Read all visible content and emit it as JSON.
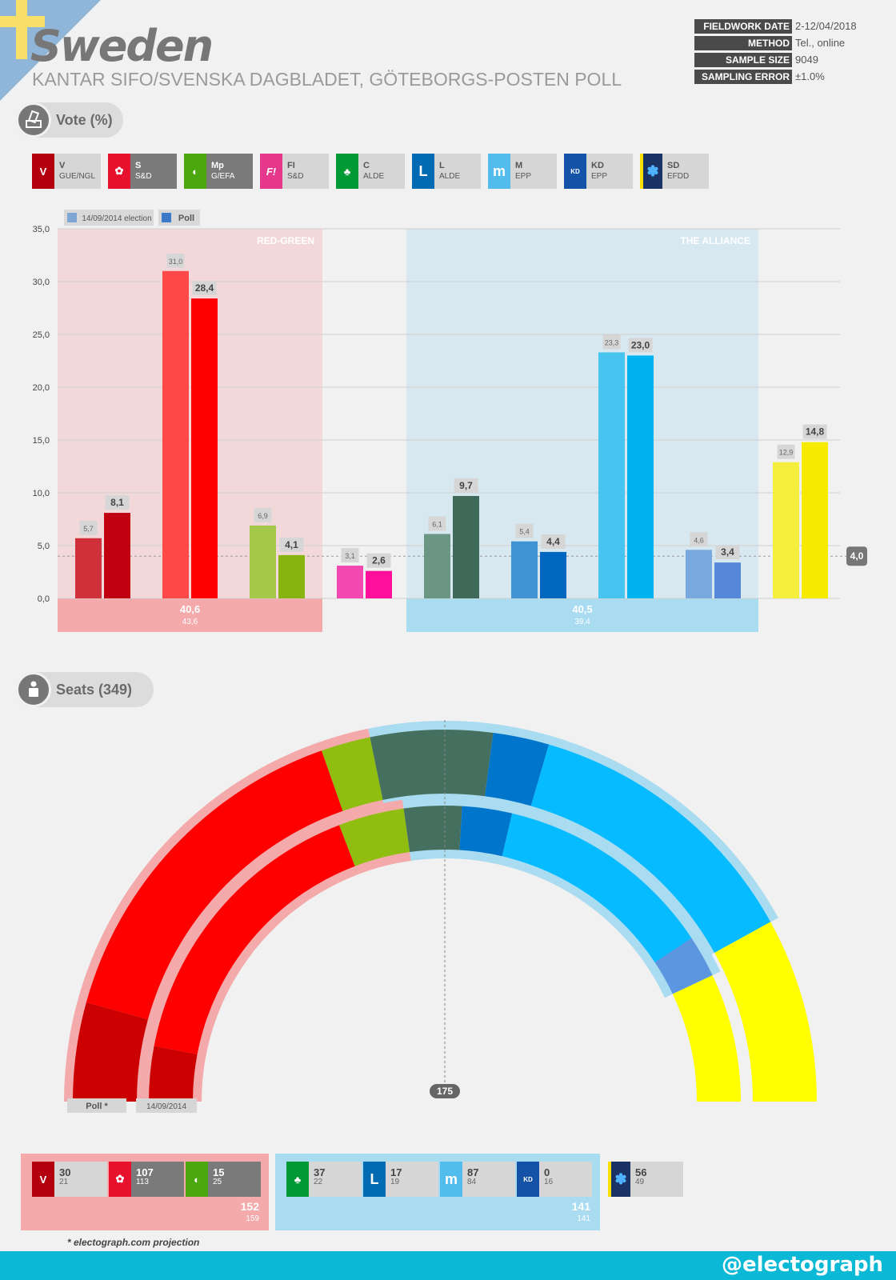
{
  "header": {
    "title": "Sweden",
    "subtitle": "KANTAR SIFO/SVENSKA DAGBLADET, GÖTEBORGS-POSTEN POLL",
    "meta": [
      {
        "key": "FIELDWORK DATE",
        "value": "2-12/04/2018"
      },
      {
        "key": "METHOD",
        "value": "Tel., online"
      },
      {
        "key": "SAMPLE SIZE",
        "value": "9049"
      },
      {
        "key": "SAMPLING ERROR",
        "value": "±1.0%"
      }
    ]
  },
  "sections": {
    "vote": "Vote (%)",
    "seats": "Seats (349)"
  },
  "parties": [
    {
      "abbr": "V",
      "group": "GUE/NGL",
      "logo": "V",
      "color": "#b4000e",
      "dark": false
    },
    {
      "abbr": "S",
      "group": "S&D",
      "logo": "✿",
      "color": "#e8112d",
      "dark": true
    },
    {
      "abbr": "Mp",
      "group": "G/EFA",
      "logo": "◐",
      "color": "#83cf39",
      "dark": true
    },
    {
      "abbr": "FI",
      "group": "S&D",
      "logo": "F!",
      "color": "#e5378b",
      "dark": false
    },
    {
      "abbr": "C",
      "group": "ALDE",
      "logo": "♣",
      "color": "#009933",
      "dark": false
    },
    {
      "abbr": "L",
      "group": "ALDE",
      "logo": "L",
      "color": "#006ab3",
      "dark": false
    },
    {
      "abbr": "M",
      "group": "EPP",
      "logo": "m",
      "color": "#52bdec",
      "dark": false
    },
    {
      "abbr": "KD",
      "group": "EPP",
      "logo": "KD",
      "color": "#1b49dd",
      "dark": false
    },
    {
      "abbr": "SD",
      "group": "EFDD",
      "logo": "✽",
      "color": "#1b3264",
      "dark": false
    }
  ],
  "chart_data": {
    "type": "bar",
    "title": "Vote (%)",
    "categories": [
      "V",
      "S",
      "Mp",
      "FI",
      "C",
      "L",
      "M",
      "KD",
      "SD"
    ],
    "series": [
      {
        "name": "14/09/2014 election",
        "values": [
          5.7,
          31.0,
          6.9,
          3.1,
          6.1,
          5.4,
          23.3,
          4.6,
          12.9
        ],
        "labels": [
          "5,7",
          "31,0",
          "6,9",
          "3,1",
          "6,1",
          "5,4",
          "23,3",
          "4,6",
          "12,9"
        ],
        "colors": [
          "#d0303a",
          "#ff4848",
          "#a6c84a",
          "#f248b0",
          "#6b9684",
          "#4093d3",
          "#47c4ef",
          "#7aa9e0",
          "#f3ef3c"
        ]
      },
      {
        "name": "Poll",
        "values": [
          8.1,
          28.4,
          4.1,
          2.6,
          9.7,
          4.4,
          23.0,
          3.4,
          14.8
        ],
        "labels": [
          "8,1",
          "28,4",
          "4,1",
          "2,6",
          "9,7",
          "4,4",
          "23,0",
          "3,4",
          "14,8"
        ],
        "colors": [
          "#c00010",
          "#ff0000",
          "#88b40f",
          "#ff0f9a",
          "#3f6a5a",
          "#0067c0",
          "#00b2f0",
          "#5588d8",
          "#f5ea00"
        ]
      }
    ],
    "legend": [
      "14/09/2014 election",
      "Poll"
    ],
    "ylim": [
      0,
      35
    ],
    "yticks": [
      "0,0",
      "5,0",
      "10,0",
      "15,0",
      "20,0",
      "25,0",
      "30,0",
      "35,0"
    ],
    "threshold": {
      "value": 4.0,
      "label": "4,0"
    },
    "coalitions": [
      {
        "name": "RED-GREEN",
        "poll": "40,6",
        "election": "43,6",
        "from": 0,
        "to": 2
      },
      {
        "name": "THE ALLIANCE",
        "poll": "40,5",
        "election": "39,4",
        "from": 4,
        "to": 7
      }
    ]
  },
  "seats": {
    "total": 349,
    "majority": "175",
    "ring_labels": {
      "poll": "Poll *",
      "election": "14/09/2014"
    },
    "order": [
      "V",
      "S",
      "Mp",
      "C",
      "L",
      "M",
      "KD",
      "SD"
    ],
    "poll": [
      30,
      107,
      15,
      37,
      17,
      87,
      0,
      56
    ],
    "election": [
      21,
      113,
      25,
      22,
      19,
      84,
      16,
      49
    ],
    "colors": [
      "#cc0000",
      "#ff0000",
      "#8fbe10",
      "#45705f",
      "#0075cc",
      "#06bbff",
      "#5c95e0",
      "#ffff00"
    ],
    "boxes": [
      {
        "party": "V",
        "poll": "30",
        "election": "21"
      },
      {
        "party": "S",
        "poll": "107",
        "election": "113"
      },
      {
        "party": "Mp",
        "poll": "15",
        "election": "25"
      },
      {
        "party": "C",
        "poll": "37",
        "election": "22"
      },
      {
        "party": "L",
        "poll": "17",
        "election": "19"
      },
      {
        "party": "M",
        "poll": "87",
        "election": "84"
      },
      {
        "party": "KD",
        "poll": "0",
        "election": "16"
      },
      {
        "party": "SD",
        "poll": "56",
        "election": "49"
      }
    ],
    "coalitions": {
      "red_green": {
        "poll": "152",
        "election": "159"
      },
      "alliance": {
        "poll": "141",
        "election": "141"
      }
    }
  },
  "footnote": "* electograph.com projection",
  "brand": "@electograph"
}
